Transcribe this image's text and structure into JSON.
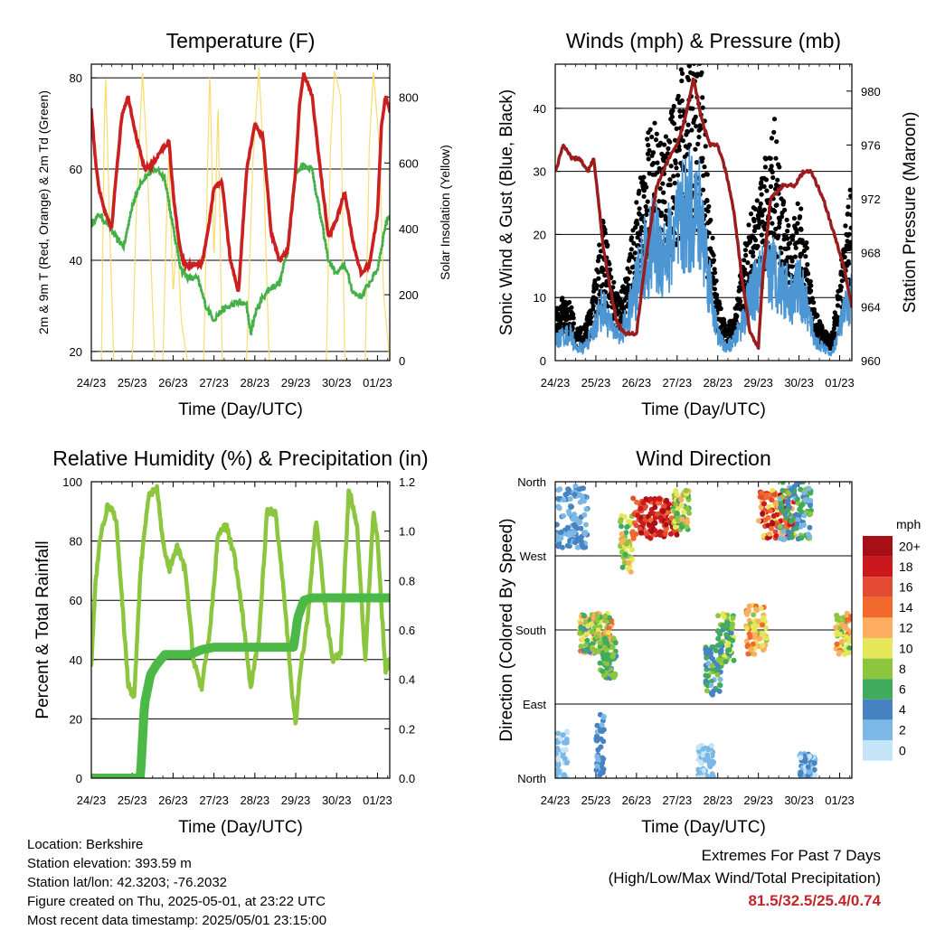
{
  "colors": {
    "temp": "#cc1f1f",
    "dew": "#44b048",
    "solar": "#f7dc6f",
    "gust": "#000000",
    "wind": "#4d96d4",
    "pressure": "#9b1c1c",
    "rh": "#8cc63f",
    "precip": "#4cb848",
    "extreme": "#c0272d"
  },
  "x_ticks": [
    "24/23",
    "25/23",
    "26/23",
    "27/23",
    "28/23",
    "29/23",
    "30/23",
    "01/23"
  ],
  "charts": [
    {
      "id": "temperature",
      "type": "line",
      "title": "Temperature (F)",
      "xlabel": "Time (Day/UTC)",
      "ylabel": "2m & 9m T (Red, Orange) & 2m Td (Green)",
      "y2label": "Solar Insolation (Yellow)",
      "ylim": [
        18,
        83
      ],
      "yticks": [
        20,
        40,
        60,
        80
      ],
      "y2lim": [
        0,
        900
      ],
      "y2ticks": [
        0,
        200,
        400,
        600,
        800
      ],
      "grid": true,
      "series": [
        {
          "key": "temp",
          "t": [
            0,
            0.1,
            0.2,
            0.35,
            0.5,
            0.6,
            0.75,
            0.9,
            1.1,
            1.3,
            1.5,
            1.7,
            1.9,
            2.0,
            2.1,
            2.2,
            2.3,
            2.5,
            2.7,
            2.85,
            3.0,
            3.2,
            3.4,
            3.6,
            3.8,
            4.0,
            4.2,
            4.4,
            4.6,
            4.8,
            5.0,
            5.1,
            5.2,
            5.4,
            5.6,
            5.8,
            6.0,
            6.2,
            6.4,
            6.6,
            6.8,
            7.0,
            7.1,
            7.2,
            7.3
          ],
          "v": [
            73,
            62,
            55,
            50,
            47,
            58,
            72,
            76,
            67,
            60,
            61,
            64,
            66,
            55,
            47,
            41,
            39,
            39,
            39,
            46,
            56,
            57,
            40,
            33,
            60,
            70,
            67,
            46,
            40,
            42,
            60,
            75,
            81,
            76,
            60,
            45,
            49,
            55,
            44,
            37,
            39,
            50,
            70,
            76,
            73
          ]
        },
        {
          "key": "dew",
          "t": [
            0,
            0.2,
            0.4,
            0.6,
            0.8,
            1.0,
            1.2,
            1.4,
            1.6,
            1.8,
            2.0,
            2.2,
            2.4,
            2.6,
            2.8,
            3.0,
            3.2,
            3.4,
            3.6,
            3.8,
            3.9,
            4.0,
            4.2,
            4.4,
            4.6,
            4.8,
            5.0,
            5.2,
            5.4,
            5.6,
            5.8,
            6.0,
            6.2,
            6.4,
            6.6,
            6.8,
            7.0,
            7.2,
            7.3
          ],
          "v": [
            48,
            50,
            48,
            45,
            43,
            52,
            57,
            59,
            60,
            58,
            47,
            38,
            36,
            36,
            30,
            27,
            29,
            30,
            31,
            30,
            24,
            28,
            32,
            34,
            35,
            42,
            59,
            61,
            60,
            50,
            40,
            37,
            39,
            33,
            32,
            35,
            38,
            48,
            50
          ]
        },
        {
          "key": "solar",
          "axis": "y2",
          "t": [
            0,
            0.25,
            0.3,
            0.35,
            0.45,
            0.55,
            0.9,
            1.0,
            1.1,
            1.25,
            1.35,
            1.55,
            1.75,
            1.85,
            1.9,
            2.0,
            2.1,
            2.2,
            2.35,
            2.5,
            2.75,
            2.85,
            2.9,
            3.0,
            3.1,
            3.2,
            3.5,
            3.7,
            3.8,
            3.95,
            4.1,
            4.2,
            4.35,
            4.6,
            4.7,
            4.8,
            5.0,
            5.1,
            5.2,
            5.45,
            5.6,
            5.75,
            5.85,
            5.95,
            6.1,
            6.2,
            6.5,
            6.7,
            6.8,
            6.9,
            7.05,
            7.15,
            7.3
          ],
          "v": [
            0,
            0,
            600,
            870,
            400,
            0,
            0,
            0,
            450,
            880,
            650,
            0,
            0,
            480,
            620,
            200,
            400,
            120,
            0,
            0,
            0,
            630,
            880,
            300,
            780,
            0,
            0,
            0,
            0,
            600,
            890,
            640,
            0,
            0,
            0,
            0,
            0,
            0,
            0,
            0,
            0,
            0,
            650,
            880,
            800,
            0,
            0,
            0,
            650,
            880,
            640,
            200,
            0
          ]
        }
      ]
    },
    {
      "id": "winds",
      "type": "line",
      "title": "Winds (mph) & Pressure (mb)",
      "xlabel": "Time (Day/UTC)",
      "ylabel": "Sonic Wind & Gust (Blue, Black)",
      "y2label": "Station Pressure (Maroon)",
      "ylim": [
        0,
        47
      ],
      "yticks": [
        0,
        10,
        20,
        30,
        40
      ],
      "y2lim": [
        960,
        982
      ],
      "y2ticks": [
        960,
        964,
        968,
        972,
        976,
        980
      ],
      "grid": true,
      "series": [
        {
          "key": "wind",
          "t": [
            0,
            0.2,
            0.4,
            0.5,
            0.7,
            0.9,
            1.1,
            1.2,
            1.4,
            1.6,
            1.8,
            2.0,
            2.2,
            2.4,
            2.6,
            2.8,
            3.0,
            3.2,
            3.4,
            3.6,
            3.8,
            4.0,
            4.2,
            4.4,
            4.6,
            4.8,
            5.0,
            5.2,
            5.4,
            5.6,
            5.8,
            6.0,
            6.2,
            6.4,
            6.6,
            6.8,
            7.0,
            7.2,
            7.3
          ],
          "v": [
            3,
            4,
            4,
            2,
            2,
            4,
            8,
            8,
            5,
            4,
            7,
            12,
            16,
            18,
            17,
            18,
            20,
            23,
            24,
            22,
            12,
            4,
            2,
            3,
            6,
            10,
            12,
            14,
            14,
            12,
            10,
            12,
            8,
            3,
            2,
            1,
            5,
            9,
            10
          ]
        },
        {
          "key": "gust",
          "t": [
            0,
            0.2,
            0.4,
            0.5,
            0.7,
            0.9,
            1.1,
            1.2,
            1.4,
            1.6,
            1.8,
            2.0,
            2.2,
            2.4,
            2.6,
            2.8,
            3.0,
            3.2,
            3.4,
            3.6,
            3.8,
            4.0,
            4.2,
            4.4,
            4.6,
            4.8,
            5.0,
            5.2,
            5.4,
            5.6,
            5.8,
            6.0,
            6.2,
            6.4,
            6.6,
            6.8,
            7.0,
            7.2,
            7.3
          ],
          "v": [
            6,
            8,
            7,
            4,
            4,
            7,
            15,
            18,
            10,
            8,
            12,
            20,
            26,
            30,
            28,
            30,
            33,
            38,
            40,
            36,
            20,
            8,
            4,
            6,
            12,
            18,
            20,
            26,
            30,
            20,
            16,
            20,
            14,
            6,
            4,
            3,
            10,
            20,
            22
          ]
        },
        {
          "key": "pressure",
          "axis": "y2",
          "t": [
            0,
            0.2,
            0.4,
            0.6,
            0.8,
            0.95,
            1.2,
            1.5,
            1.7,
            2.0,
            2.2,
            2.5,
            2.8,
            3.0,
            3.2,
            3.4,
            3.6,
            3.8,
            4.0,
            4.2,
            4.4,
            4.6,
            4.8,
            5.0,
            5.1,
            5.3,
            5.6,
            5.9,
            6.1,
            6.3,
            6.6,
            6.9,
            7.1,
            7.3
          ],
          "v": [
            974,
            976,
            975,
            975,
            974,
            975,
            968,
            963,
            962,
            962,
            967,
            973,
            975,
            976,
            978,
            981,
            978,
            976,
            976,
            974,
            971,
            966,
            962,
            961,
            966,
            972,
            973,
            973,
            974,
            974,
            972,
            969,
            967,
            964
          ]
        }
      ]
    },
    {
      "id": "humidity",
      "type": "line",
      "title": "Relative Humidity (%) & Precipitation (in)",
      "xlabel": "Time (Day/UTC)",
      "ylabel": "Percent & Total Rainfall",
      "ylim": [
        0,
        100
      ],
      "yticks": [
        0,
        20,
        40,
        60,
        80,
        100
      ],
      "y2lim": [
        0,
        1.2
      ],
      "y2ticks": [
        0.0,
        0.2,
        0.4,
        0.6,
        0.8,
        1.0,
        1.2
      ],
      "grid": true,
      "series": [
        {
          "key": "rh",
          "t": [
            0,
            0.1,
            0.2,
            0.4,
            0.6,
            0.75,
            0.9,
            1.05,
            1.2,
            1.4,
            1.6,
            1.75,
            1.9,
            2.1,
            2.3,
            2.5,
            2.7,
            2.9,
            3.0,
            3.1,
            3.3,
            3.5,
            3.7,
            3.9,
            4.1,
            4.3,
            4.5,
            4.7,
            4.9,
            5.0,
            5.1,
            5.3,
            5.5,
            5.7,
            5.9,
            6.1,
            6.3,
            6.5,
            6.7,
            6.9,
            7.0,
            7.2,
            7.3
          ],
          "v": [
            38,
            65,
            80,
            92,
            88,
            60,
            32,
            27,
            70,
            95,
            98,
            80,
            70,
            78,
            70,
            40,
            30,
            50,
            65,
            83,
            85,
            75,
            55,
            30,
            48,
            90,
            90,
            65,
            30,
            18,
            35,
            55,
            88,
            60,
            40,
            42,
            98,
            85,
            40,
            90,
            80,
            35,
            40
          ]
        },
        {
          "key": "precip",
          "axis": "y2",
          "t": [
            0,
            1.0,
            1.2,
            1.3,
            1.45,
            1.6,
            1.8,
            2.0,
            2.4,
            2.7,
            3.0,
            3.5,
            4.0,
            4.5,
            4.95,
            5.05,
            5.2,
            5.4,
            6.0,
            6.5,
            7.0,
            7.3
          ],
          "v": [
            0,
            0,
            0,
            0.3,
            0.42,
            0.46,
            0.5,
            0.5,
            0.5,
            0.52,
            0.53,
            0.53,
            0.53,
            0.53,
            0.53,
            0.65,
            0.72,
            0.73,
            0.73,
            0.73,
            0.73,
            0.73
          ]
        }
      ]
    },
    {
      "id": "direction",
      "type": "scatter",
      "title": "Wind Direction",
      "xlabel": "Time (Day/UTC)",
      "ylabel": "Direction (Colored By Speed)",
      "yticks": [
        "North",
        "East",
        "South",
        "West",
        "North"
      ],
      "ylim": [
        0,
        360
      ],
      "grid": true,
      "legend": {
        "title": "mph",
        "placement": "right",
        "labels": [
          "20+",
          "18",
          "16",
          "14",
          "12",
          "10",
          "8",
          "6",
          "4",
          "2",
          "0"
        ],
        "colors": [
          "#a50f15",
          "#cb181d",
          "#e34a33",
          "#f16a2c",
          "#fdae61",
          "#e6e659",
          "#8cc63f",
          "#41ab5d",
          "#4783c2",
          "#7bb8e6",
          "#c6e4f7"
        ]
      },
      "clusters": [
        {
          "t": [
            0,
            0.8
          ],
          "d": [
            280,
            355
          ],
          "spd": [
            1,
            5
          ]
        },
        {
          "t": [
            0.6,
            1.0
          ],
          "d": [
            150,
            200
          ],
          "spd": [
            4,
            14
          ]
        },
        {
          "t": [
            1.0,
            1.4
          ],
          "d": [
            150,
            200
          ],
          "spd": [
            6,
            14
          ]
        },
        {
          "t": [
            1.1,
            1.5
          ],
          "d": [
            120,
            170
          ],
          "spd": [
            4,
            9
          ]
        },
        {
          "t": [
            1.6,
            1.9
          ],
          "d": [
            250,
            320
          ],
          "spd": [
            6,
            12
          ]
        },
        {
          "t": [
            1.9,
            3.0
          ],
          "d": [
            290,
            340
          ],
          "spd": [
            14,
            22
          ]
        },
        {
          "t": [
            2.9,
            3.3
          ],
          "d": [
            300,
            350
          ],
          "spd": [
            6,
            12
          ]
        },
        {
          "t": [
            3.7,
            4.1
          ],
          "d": [
            100,
            160
          ],
          "spd": [
            2,
            8
          ]
        },
        {
          "t": [
            4.0,
            4.4
          ],
          "d": [
            140,
            200
          ],
          "spd": [
            4,
            10
          ]
        },
        {
          "t": [
            4.7,
            5.2
          ],
          "d": [
            150,
            210
          ],
          "spd": [
            8,
            14
          ]
        },
        {
          "t": [
            5.0,
            5.9
          ],
          "d": [
            290,
            350
          ],
          "spd": [
            10,
            20
          ]
        },
        {
          "t": [
            5.5,
            6.3
          ],
          "d": [
            290,
            360
          ],
          "spd": [
            2,
            8
          ]
        },
        {
          "t": [
            6.9,
            7.3
          ],
          "d": [
            150,
            200
          ],
          "spd": [
            6,
            14
          ]
        },
        {
          "t": [
            0,
            0.3
          ],
          "d": [
            0,
            60
          ],
          "spd": [
            0,
            3
          ]
        },
        {
          "t": [
            6.0,
            6.4
          ],
          "d": [
            0,
            30
          ],
          "spd": [
            0,
            4
          ]
        },
        {
          "t": [
            3.5,
            3.9
          ],
          "d": [
            0,
            40
          ],
          "spd": [
            0,
            2
          ]
        },
        {
          "t": [
            1.0,
            1.2
          ],
          "d": [
            0,
            80
          ],
          "spd": [
            2,
            5
          ]
        }
      ]
    }
  ],
  "info": {
    "location": "Location: Berkshire",
    "elevation": "Station elevation: 393.59 m",
    "latlon": "Station lat/lon: 42.3203; -76.2032",
    "created": "Figure created on Thu, 2025-05-01, at 23:22 UTC",
    "recent": "Most recent data timestamp: 2025/05/01 23:15:00"
  },
  "extremes": {
    "title": "Extremes For Past 7 Days",
    "subtitle": "(High/Low/Max Wind/Total Precipitation)",
    "values": "81.5/32.5/25.4/0.74"
  }
}
